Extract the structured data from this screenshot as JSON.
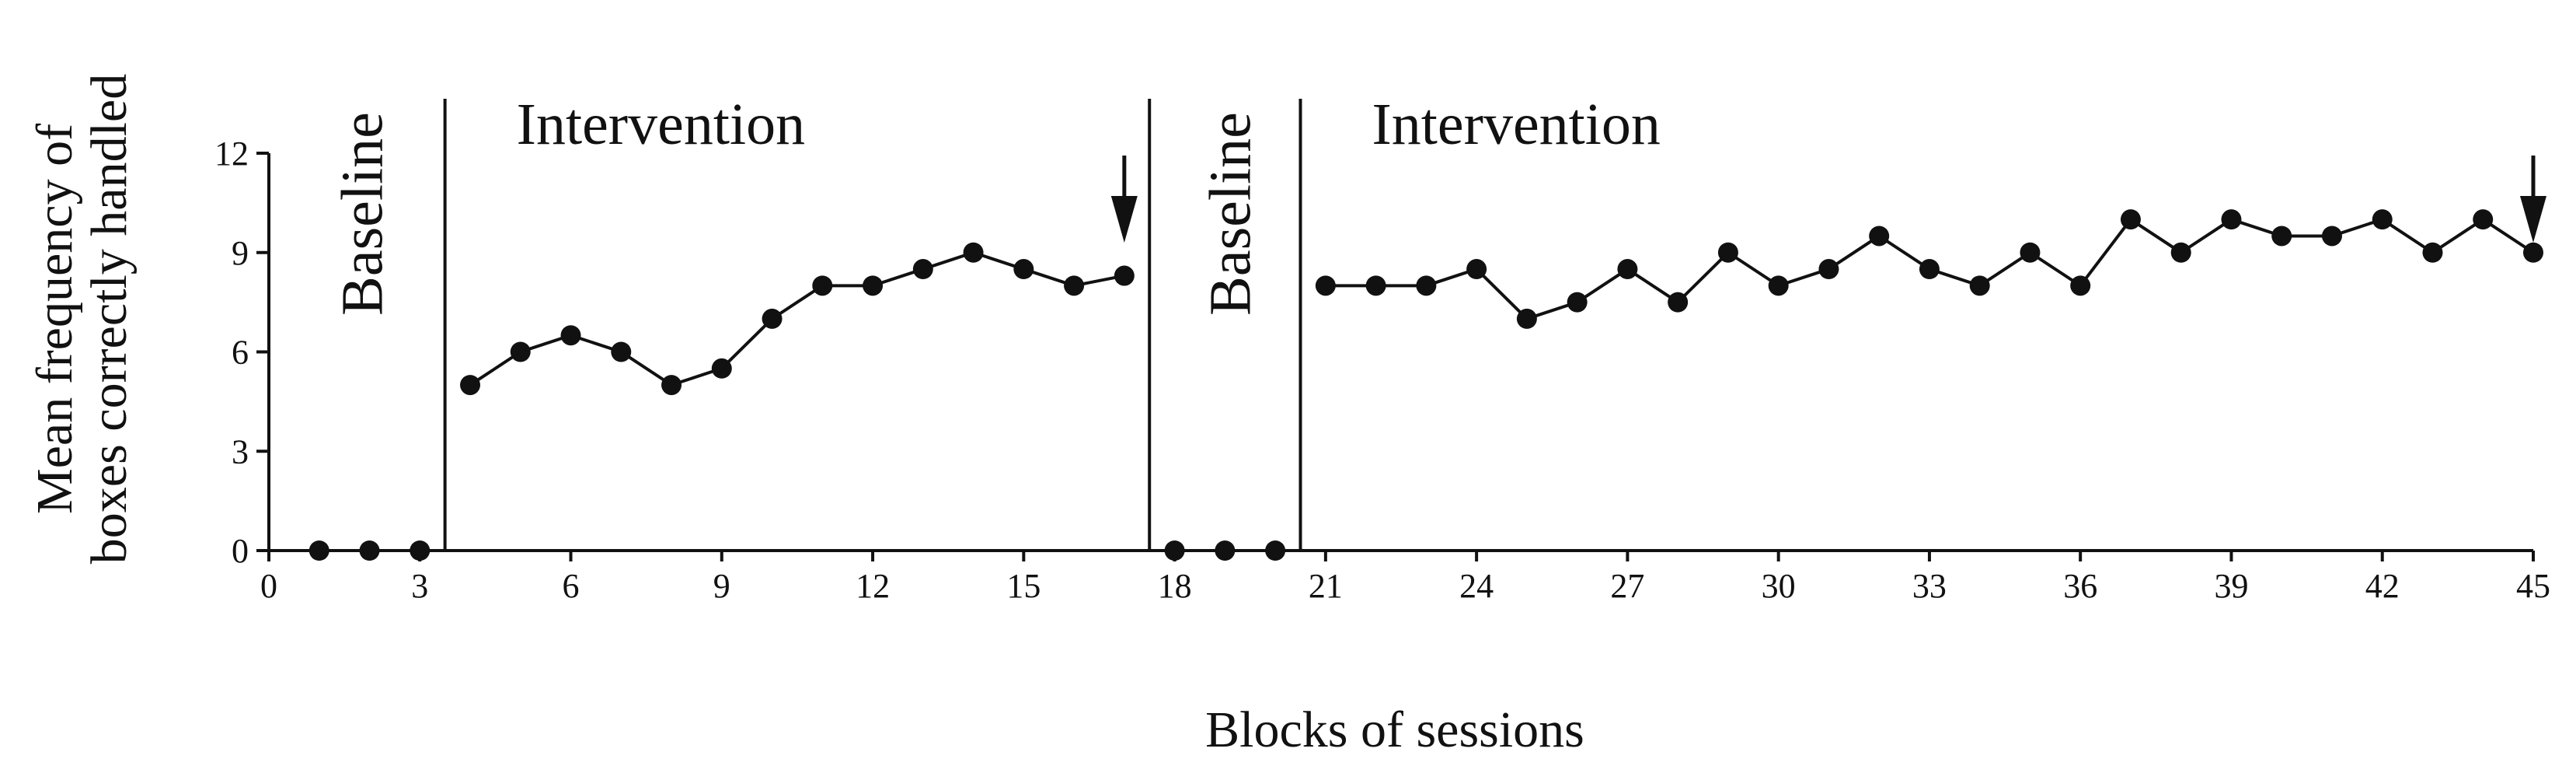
{
  "chart_data": {
    "type": "line",
    "xlabel": "Blocks of sessions",
    "ylabel": "Mean frequency of boxes correctly handled",
    "ylabel_lines": [
      "Mean frequency of",
      "boxes correctly handled"
    ],
    "xlim": [
      0,
      45
    ],
    "ylim": [
      0,
      12
    ],
    "x_ticks": [
      0,
      3,
      6,
      9,
      12,
      15,
      18,
      21,
      24,
      27,
      30,
      33,
      36,
      39,
      42,
      45
    ],
    "y_ticks": [
      0,
      3,
      6,
      9,
      12
    ],
    "grid": false,
    "legend": "none",
    "phases": [
      {
        "label": "Baseline",
        "orientation": "vertical",
        "start": 0,
        "end": 3.5
      },
      {
        "label": "Intervention",
        "orientation": "horizontal",
        "start": 3.5,
        "end": 17.5
      },
      {
        "label": "Baseline",
        "orientation": "vertical",
        "start": 17.5,
        "end": 20.5
      },
      {
        "label": "Intervention",
        "orientation": "horizontal",
        "start": 20.5,
        "end": 45
      }
    ],
    "phase_lines": [
      3.5,
      17.5,
      20.5
    ],
    "segments": [
      {
        "x": [
          1,
          2,
          3
        ],
        "y": [
          0,
          0,
          0
        ]
      },
      {
        "x": [
          4,
          5,
          6,
          7,
          8,
          9,
          10,
          11,
          12,
          13,
          14,
          15,
          16,
          17
        ],
        "y": [
          5,
          6,
          6.5,
          6,
          5,
          5.5,
          7,
          8,
          8,
          8.5,
          9,
          8.5,
          8,
          8.3
        ]
      },
      {
        "x": [
          18,
          19,
          20
        ],
        "y": [
          0,
          0,
          0
        ]
      },
      {
        "x": [
          21,
          22,
          23,
          24,
          25,
          26,
          27,
          28,
          29,
          30,
          31,
          32,
          33,
          34,
          35,
          36,
          37,
          38,
          39,
          40,
          41,
          42,
          43,
          44,
          45
        ],
        "y": [
          8,
          8,
          8,
          8.5,
          7,
          7.5,
          8.5,
          7.5,
          9,
          8,
          8.5,
          9.5,
          8.5,
          8,
          9,
          8,
          10,
          9,
          10,
          9.5,
          9.5,
          10,
          9,
          10,
          9
        ]
      }
    ],
    "arrows": [
      {
        "x": 17
      },
      {
        "x": 45
      }
    ]
  }
}
